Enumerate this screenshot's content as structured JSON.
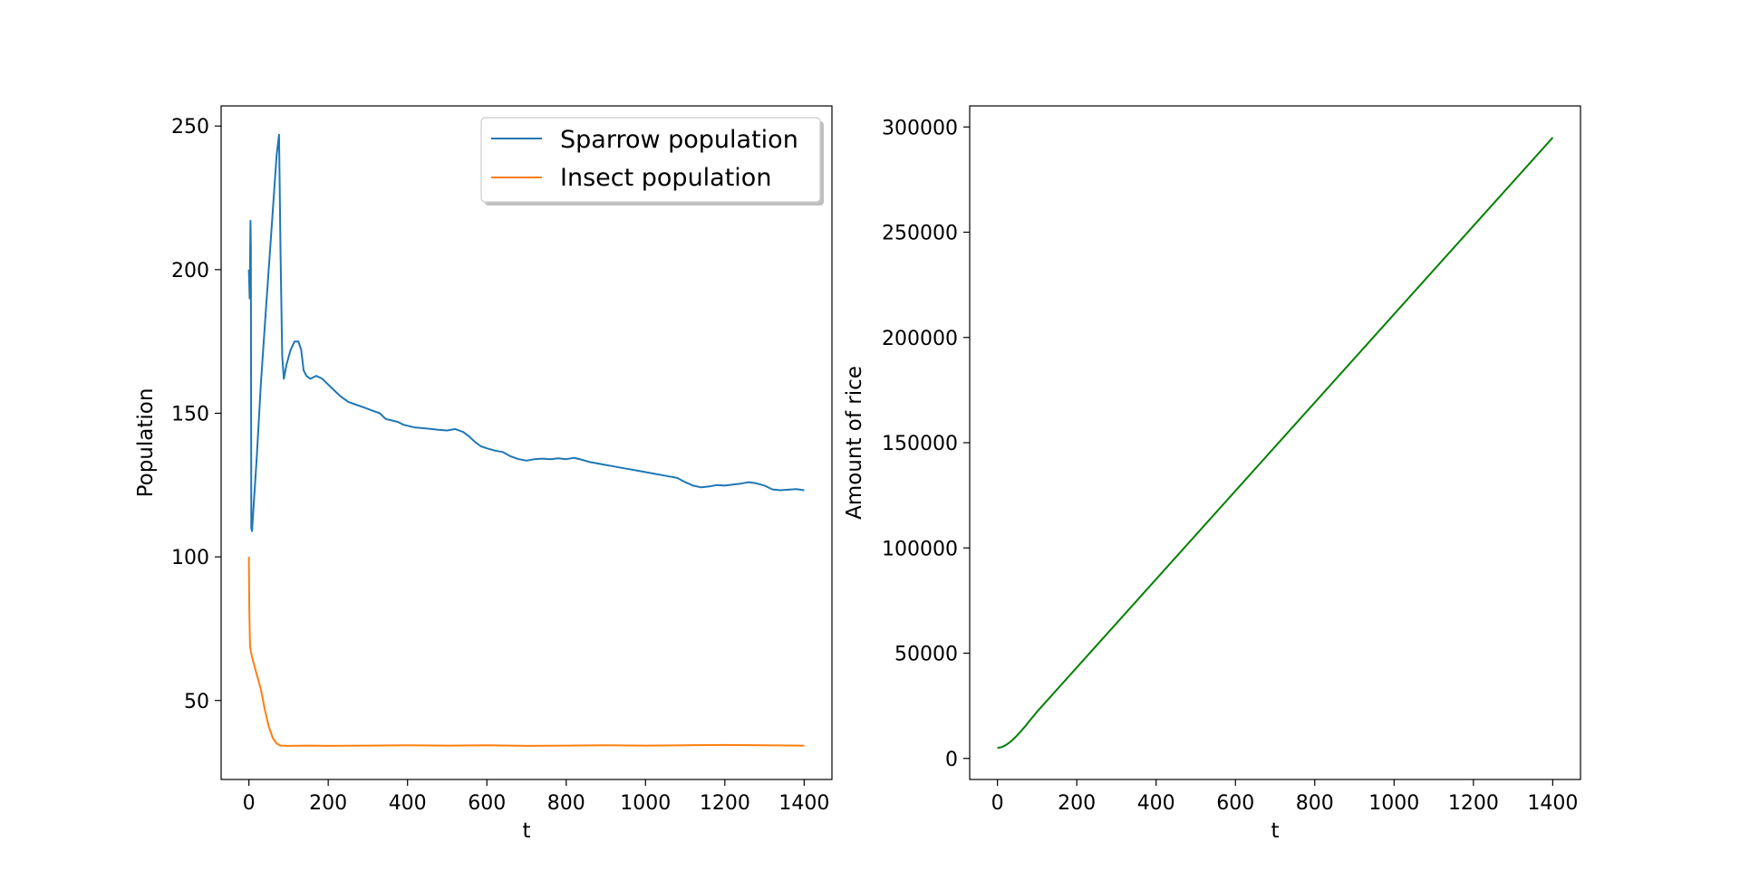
{
  "chart_data": [
    {
      "type": "line",
      "xlabel": "t",
      "ylabel": "Population",
      "xlim": [
        -70,
        1470
      ],
      "ylim": [
        22.5,
        257
      ],
      "xticks": [
        0,
        200,
        400,
        600,
        800,
        1000,
        1200,
        1400
      ],
      "yticks": [
        50,
        100,
        150,
        200,
        250
      ],
      "grid": false,
      "legend": {
        "placement": "top-right"
      },
      "series": [
        {
          "name": "Sparrow population",
          "color": "#1f77b4",
          "points": [
            [
              0,
              200
            ],
            [
              2,
              190
            ],
            [
              4,
              217
            ],
            [
              5,
              208
            ],
            [
              6,
              110
            ],
            [
              8,
              109
            ],
            [
              12,
              118
            ],
            [
              20,
              135
            ],
            [
              30,
              160
            ],
            [
              40,
              180
            ],
            [
              50,
              200
            ],
            [
              60,
              220
            ],
            [
              70,
              240
            ],
            [
              76,
              247
            ],
            [
              80,
              205
            ],
            [
              84,
              170
            ],
            [
              88,
              162
            ],
            [
              95,
              167
            ],
            [
              105,
              172
            ],
            [
              115,
              175
            ],
            [
              125,
              175
            ],
            [
              132,
              172
            ],
            [
              138,
              165
            ],
            [
              145,
              163
            ],
            [
              155,
              162
            ],
            [
              170,
              163
            ],
            [
              185,
              162
            ],
            [
              200,
              160
            ],
            [
              215,
              158
            ],
            [
              230,
              156
            ],
            [
              250,
              154
            ],
            [
              270,
              153
            ],
            [
              290,
              152
            ],
            [
              310,
              151
            ],
            [
              330,
              150
            ],
            [
              345,
              148
            ],
            [
              360,
              147.5
            ],
            [
              375,
              147
            ],
            [
              390,
              146
            ],
            [
              405,
              145.5
            ],
            [
              420,
              145
            ],
            [
              440,
              144.8
            ],
            [
              460,
              144.5
            ],
            [
              480,
              144.2
            ],
            [
              500,
              144
            ],
            [
              520,
              144.5
            ],
            [
              540,
              143.5
            ],
            [
              555,
              142
            ],
            [
              570,
              140
            ],
            [
              585,
              138.5
            ],
            [
              600,
              137.8
            ],
            [
              620,
              137
            ],
            [
              640,
              136.5
            ],
            [
              660,
              135
            ],
            [
              680,
              134
            ],
            [
              700,
              133.5
            ],
            [
              720,
              134
            ],
            [
              740,
              134.2
            ],
            [
              760,
              134
            ],
            [
              780,
              134.3
            ],
            [
              800,
              134
            ],
            [
              820,
              134.5
            ],
            [
              840,
              133.8
            ],
            [
              860,
              133
            ],
            [
              880,
              132.5
            ],
            [
              900,
              132
            ],
            [
              920,
              131.5
            ],
            [
              940,
              131
            ],
            [
              960,
              130.5
            ],
            [
              980,
              130
            ],
            [
              1000,
              129.5
            ],
            [
              1020,
              129
            ],
            [
              1040,
              128.5
            ],
            [
              1060,
              128
            ],
            [
              1080,
              127.5
            ],
            [
              1100,
              126
            ],
            [
              1120,
              124.8
            ],
            [
              1140,
              124.2
            ],
            [
              1160,
              124.5
            ],
            [
              1180,
              125
            ],
            [
              1200,
              124.8
            ],
            [
              1220,
              125.2
            ],
            [
              1240,
              125.5
            ],
            [
              1260,
              126
            ],
            [
              1280,
              125.6
            ],
            [
              1300,
              124.8
            ],
            [
              1320,
              123.5
            ],
            [
              1340,
              123.2
            ],
            [
              1360,
              123.4
            ],
            [
              1380,
              123.6
            ],
            [
              1400,
              123.2
            ]
          ]
        },
        {
          "name": "Insect population",
          "color": "#ff7f0e",
          "points": [
            [
              0,
              100
            ],
            [
              1,
              82
            ],
            [
              2,
              75
            ],
            [
              3,
              69
            ],
            [
              5,
              67
            ],
            [
              10,
              64
            ],
            [
              20,
              59
            ],
            [
              30,
              54
            ],
            [
              40,
              47
            ],
            [
              50,
              41
            ],
            [
              60,
              37
            ],
            [
              70,
              35
            ],
            [
              80,
              34.3
            ],
            [
              100,
              34.2
            ],
            [
              150,
              34.3
            ],
            [
              200,
              34.2
            ],
            [
              300,
              34.3
            ],
            [
              400,
              34.4
            ],
            [
              500,
              34.3
            ],
            [
              600,
              34.4
            ],
            [
              700,
              34.2
            ],
            [
              800,
              34.3
            ],
            [
              900,
              34.4
            ],
            [
              1000,
              34.3
            ],
            [
              1100,
              34.4
            ],
            [
              1200,
              34.5
            ],
            [
              1300,
              34.4
            ],
            [
              1400,
              34.3
            ]
          ]
        }
      ]
    },
    {
      "type": "line",
      "xlabel": "t",
      "ylabel": "Amount of rice",
      "xlim": [
        -70,
        1470
      ],
      "ylim": [
        -10000,
        310000
      ],
      "xticks": [
        0,
        200,
        400,
        600,
        800,
        1000,
        1200,
        1400
      ],
      "yticks": [
        0,
        50000,
        100000,
        150000,
        200000,
        250000,
        300000
      ],
      "grid": false,
      "series": [
        {
          "color": "#008000",
          "points": [
            [
              0,
              5000
            ],
            [
              10,
              5300
            ],
            [
              20,
              6200
            ],
            [
              30,
              7500
            ],
            [
              40,
              9100
            ],
            [
              50,
              11000
            ],
            [
              60,
              13100
            ],
            [
              70,
              15300
            ],
            [
              80,
              17600
            ],
            [
              90,
              19900
            ],
            [
              100,
              22200
            ],
            [
              1400,
              295000
            ]
          ]
        }
      ]
    }
  ]
}
